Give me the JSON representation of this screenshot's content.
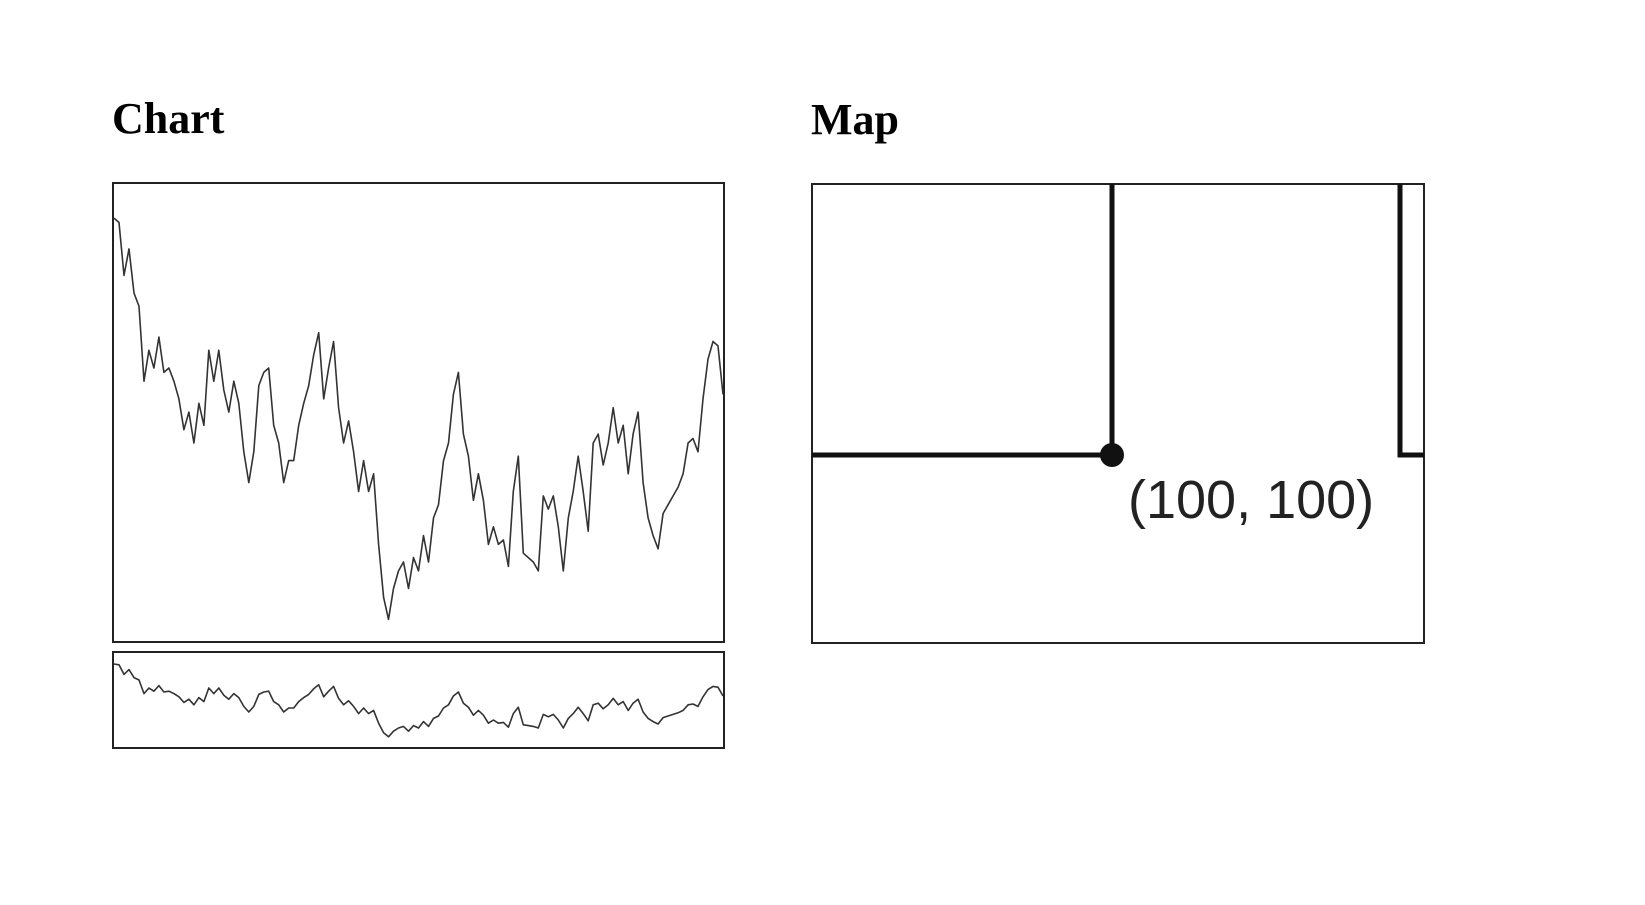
{
  "headings": {
    "chart": "Chart",
    "map": "Map"
  },
  "chart_data": {
    "type": "line",
    "color": "#333333",
    "ylim": [
      0,
      100
    ],
    "values": [
      95,
      94,
      82,
      88,
      78,
      75,
      58,
      65,
      61,
      68,
      60,
      61,
      58,
      54,
      47,
      51,
      44,
      53,
      48,
      65,
      58,
      65,
      56,
      51,
      58,
      53,
      42,
      35,
      42,
      57,
      60,
      61,
      48,
      44,
      35,
      40,
      40,
      48,
      53,
      57,
      64,
      69,
      54,
      61,
      67,
      52,
      44,
      49,
      42,
      33,
      40,
      33,
      37,
      21,
      9,
      4,
      11,
      15,
      17,
      11,
      18,
      15,
      23,
      17,
      27,
      30,
      40,
      44,
      55,
      60,
      46,
      41,
      31,
      37,
      31,
      21,
      25,
      21,
      22,
      16,
      33,
      41,
      19,
      18,
      17,
      15,
      32,
      29,
      32,
      25,
      15,
      27,
      33,
      41,
      33,
      24,
      44,
      46,
      39,
      44,
      52,
      44,
      48,
      37,
      46,
      51,
      35,
      27,
      23,
      20,
      28,
      30,
      32,
      34,
      37,
      44,
      45,
      42,
      54,
      63,
      67,
      66,
      55
    ]
  },
  "map": {
    "label": "(100, 100)"
  }
}
